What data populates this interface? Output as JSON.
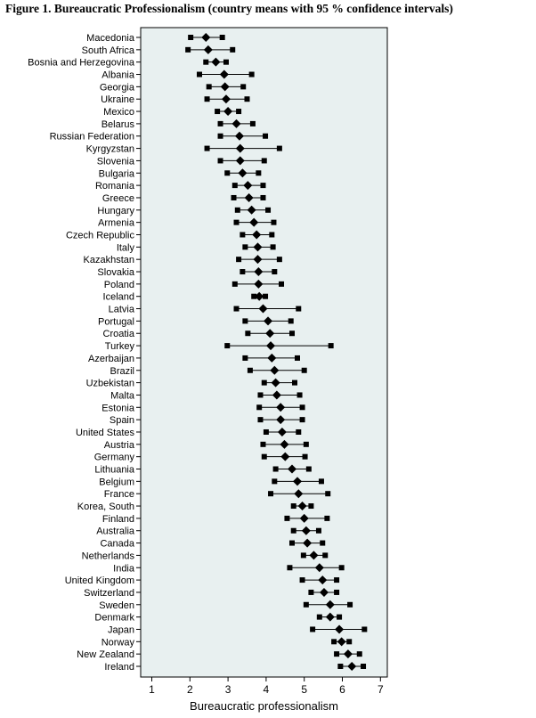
{
  "title": "Figure 1. Bureaucratic Professionalism (country means with 95 % confidence intervals)",
  "colors": {
    "plot_background": "#e8f0f0",
    "marker": "#000000",
    "frame": "#000000"
  },
  "chart_data": {
    "type": "scatter",
    "orientation": "horizontal",
    "title": "Figure 1. Bureaucratic Professionalism (country means with 95 % confidence intervals)",
    "xlabel": "Bureaucratic professionalism",
    "ylabel": "",
    "xlim": [
      0.8,
      7.2
    ],
    "xticks": [
      "1",
      "2",
      "3",
      "4",
      "5",
      "6",
      "7"
    ],
    "grid": false,
    "mean_marker": "diamond",
    "ci_marker": "square",
    "countries": [
      {
        "name": "Macedonia",
        "mean": 2.42,
        "lo": 2.02,
        "hi": 2.85
      },
      {
        "name": "South Africa",
        "mean": 2.48,
        "lo": 1.95,
        "hi": 3.12
      },
      {
        "name": "Bosnia and Herzegovina",
        "mean": 2.68,
        "lo": 2.42,
        "hi": 2.95
      },
      {
        "name": "Albania",
        "mean": 2.9,
        "lo": 2.25,
        "hi": 3.62
      },
      {
        "name": "Georgia",
        "mean": 2.92,
        "lo": 2.5,
        "hi": 3.4
      },
      {
        "name": "Ukraine",
        "mean": 2.95,
        "lo": 2.45,
        "hi": 3.5
      },
      {
        "name": "Mexico",
        "mean": 3.0,
        "lo": 2.72,
        "hi": 3.28
      },
      {
        "name": "Belarus",
        "mean": 3.22,
        "lo": 2.8,
        "hi": 3.65
      },
      {
        "name": "Russian Federation",
        "mean": 3.3,
        "lo": 2.8,
        "hi": 3.98
      },
      {
        "name": "Kyrgyzstan",
        "mean": 3.32,
        "lo": 2.45,
        "hi": 4.35
      },
      {
        "name": "Slovenia",
        "mean": 3.32,
        "lo": 2.8,
        "hi": 3.95
      },
      {
        "name": "Bulgaria",
        "mean": 3.38,
        "lo": 2.98,
        "hi": 3.8
      },
      {
        "name": "Romania",
        "mean": 3.52,
        "lo": 3.18,
        "hi": 3.92
      },
      {
        "name": "Greece",
        "mean": 3.55,
        "lo": 3.15,
        "hi": 3.92
      },
      {
        "name": "Hungary",
        "mean": 3.62,
        "lo": 3.25,
        "hi": 4.05
      },
      {
        "name": "Armenia",
        "mean": 3.68,
        "lo": 3.22,
        "hi": 4.2
      },
      {
        "name": "Czech Republic",
        "mean": 3.75,
        "lo": 3.38,
        "hi": 4.15
      },
      {
        "name": "Italy",
        "mean": 3.78,
        "lo": 3.45,
        "hi": 4.18
      },
      {
        "name": "Kazakhstan",
        "mean": 3.78,
        "lo": 3.28,
        "hi": 4.35
      },
      {
        "name": "Slovakia",
        "mean": 3.8,
        "lo": 3.38,
        "hi": 4.22
      },
      {
        "name": "Poland",
        "mean": 3.8,
        "lo": 3.18,
        "hi": 4.4
      },
      {
        "name": "Iceland",
        "mean": 3.82,
        "lo": 3.68,
        "hi": 3.98
      },
      {
        "name": "Latvia",
        "mean": 3.92,
        "lo": 3.22,
        "hi": 4.85
      },
      {
        "name": "Portugal",
        "mean": 4.05,
        "lo": 3.45,
        "hi": 4.65
      },
      {
        "name": "Croatia",
        "mean": 4.1,
        "lo": 3.52,
        "hi": 4.68
      },
      {
        "name": "Turkey",
        "mean": 4.12,
        "lo": 2.98,
        "hi": 5.7
      },
      {
        "name": "Azerbaijan",
        "mean": 4.15,
        "lo": 3.45,
        "hi": 4.82
      },
      {
        "name": "Brazil",
        "mean": 4.22,
        "lo": 3.58,
        "hi": 5.0
      },
      {
        "name": "Uzbekistan",
        "mean": 4.25,
        "lo": 3.95,
        "hi": 4.75
      },
      {
        "name": "Malta",
        "mean": 4.28,
        "lo": 3.85,
        "hi": 4.88
      },
      {
        "name": "Estonia",
        "mean": 4.38,
        "lo": 3.82,
        "hi": 4.95
      },
      {
        "name": "Spain",
        "mean": 4.38,
        "lo": 3.85,
        "hi": 4.95
      },
      {
        "name": "United States",
        "mean": 4.42,
        "lo": 4.0,
        "hi": 4.85
      },
      {
        "name": "Austria",
        "mean": 4.48,
        "lo": 3.92,
        "hi": 5.05
      },
      {
        "name": "Germany",
        "mean": 4.5,
        "lo": 3.95,
        "hi": 5.02
      },
      {
        "name": "Lithuania",
        "mean": 4.68,
        "lo": 4.25,
        "hi": 5.12
      },
      {
        "name": "Belgium",
        "mean": 4.82,
        "lo": 4.22,
        "hi": 5.45
      },
      {
        "name": "France",
        "mean": 4.85,
        "lo": 4.12,
        "hi": 5.62
      },
      {
        "name": "Korea, South",
        "mean": 4.95,
        "lo": 4.72,
        "hi": 5.18
      },
      {
        "name": "Finland",
        "mean": 5.0,
        "lo": 4.55,
        "hi": 5.6
      },
      {
        "name": "Australia",
        "mean": 5.05,
        "lo": 4.72,
        "hi": 5.38
      },
      {
        "name": "Canada",
        "mean": 5.08,
        "lo": 4.68,
        "hi": 5.48
      },
      {
        "name": "Netherlands",
        "mean": 5.25,
        "lo": 4.98,
        "hi": 5.55
      },
      {
        "name": "India",
        "mean": 5.4,
        "lo": 4.62,
        "hi": 5.98
      },
      {
        "name": "United Kingdom",
        "mean": 5.48,
        "lo": 4.95,
        "hi": 5.85
      },
      {
        "name": "Switzerland",
        "mean": 5.52,
        "lo": 5.18,
        "hi": 5.85
      },
      {
        "name": "Sweden",
        "mean": 5.68,
        "lo": 5.05,
        "hi": 6.2
      },
      {
        "name": "Denmark",
        "mean": 5.68,
        "lo": 5.4,
        "hi": 5.92
      },
      {
        "name": "Japan",
        "mean": 5.92,
        "lo": 5.22,
        "hi": 6.58
      },
      {
        "name": "Norway",
        "mean": 5.98,
        "lo": 5.78,
        "hi": 6.18
      },
      {
        "name": "New Zealand",
        "mean": 6.15,
        "lo": 5.85,
        "hi": 6.45
      },
      {
        "name": "Ireland",
        "mean": 6.25,
        "lo": 5.95,
        "hi": 6.55
      }
    ]
  }
}
